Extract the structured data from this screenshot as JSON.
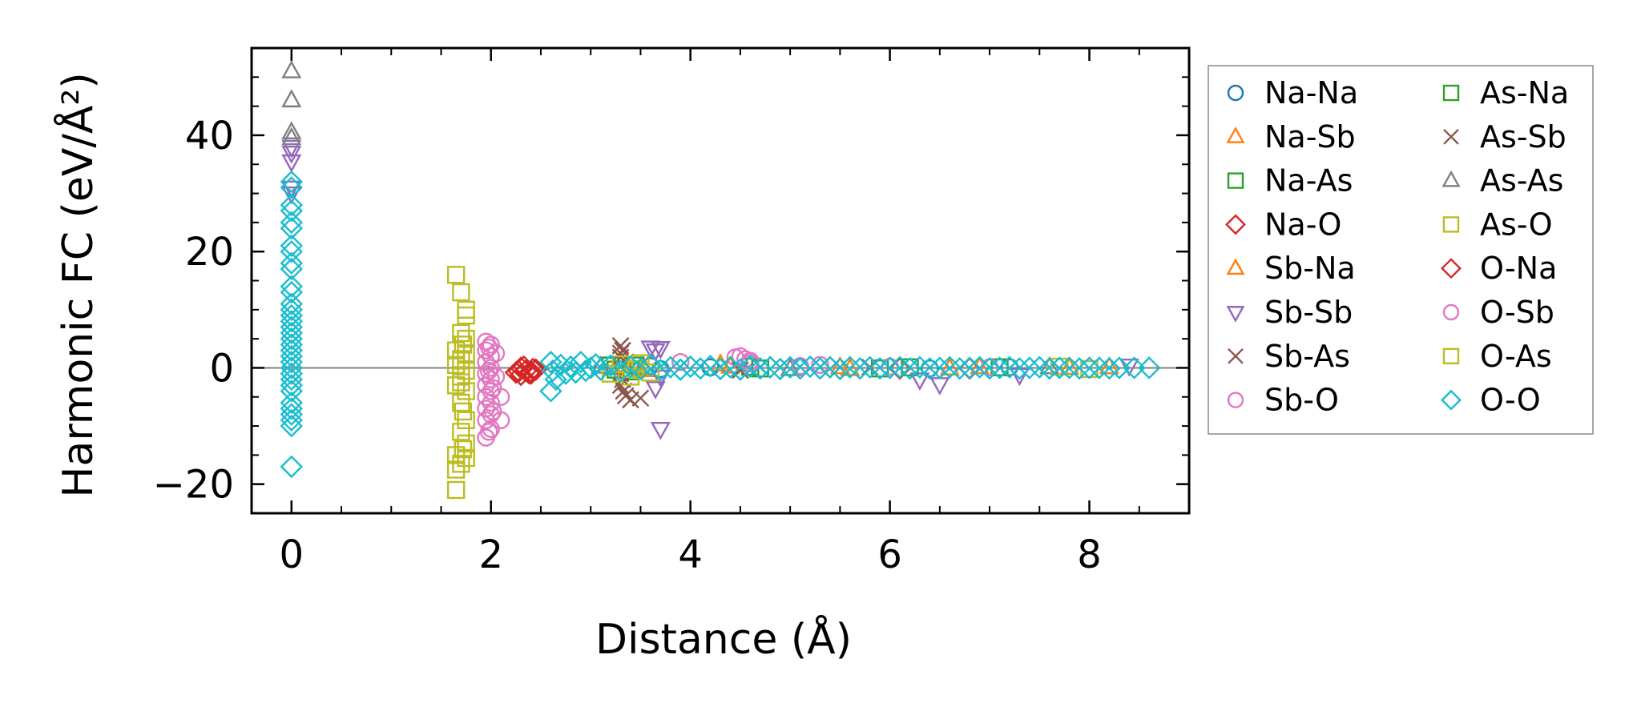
{
  "chart_data": {
    "type": "scatter",
    "title": "",
    "xlabel": "Distance (Å)",
    "ylabel": "Harmonic FC (eV/Å²)",
    "xlim": [
      -0.4,
      9.0
    ],
    "ylim": [
      -25.0,
      55.0
    ],
    "xticks": [
      0,
      2,
      4,
      6,
      8
    ],
    "xtick_labels": [
      "0",
      "2",
      "4",
      "6",
      "8"
    ],
    "yticks": [
      -20,
      0,
      20,
      40
    ],
    "ytick_labels": [
      "−20",
      "0",
      "20",
      "40"
    ],
    "hline": 0,
    "legend_position": "outside-right",
    "series": [
      {
        "name": "Na-Na",
        "color": "#1f77b4",
        "marker": "circle",
        "points": [
          [
            3.6,
            0.3
          ],
          [
            3.7,
            -0.2
          ],
          [
            4.2,
            0.1
          ],
          [
            5.1,
            0.2
          ],
          [
            6.4,
            -0.1
          ],
          [
            7.2,
            0.1
          ]
        ]
      },
      {
        "name": "Na-Sb",
        "color": "#ff7f0e",
        "marker": "triangle-up",
        "points": [
          [
            3.3,
            0.5
          ],
          [
            3.5,
            -0.3
          ],
          [
            4.4,
            0.2
          ],
          [
            5.6,
            -0.2
          ],
          [
            6.9,
            0.1
          ],
          [
            7.8,
            0.0
          ]
        ]
      },
      {
        "name": "Na-As",
        "color": "#2ca02c",
        "marker": "square",
        "points": [
          [
            3.2,
            0.4
          ],
          [
            3.4,
            -0.6
          ],
          [
            4.6,
            0.2
          ],
          [
            5.9,
            -0.1
          ],
          [
            7.1,
            0.1
          ]
        ]
      },
      {
        "name": "Na-O",
        "color": "#d62728",
        "marker": "diamond",
        "points": [
          [
            2.25,
            -0.8
          ],
          [
            2.3,
            -1.2
          ],
          [
            2.35,
            -0.5
          ],
          [
            2.4,
            -1.0
          ],
          [
            2.45,
            -0.3
          ],
          [
            2.3,
            0.0
          ],
          [
            2.4,
            -0.6
          ],
          [
            4.8,
            0.1
          ],
          [
            6.1,
            -0.1
          ]
        ]
      },
      {
        "name": "Sb-Na",
        "color": "#ff7f0e",
        "marker": "triangle-up",
        "points": [
          [
            3.35,
            0.3
          ],
          [
            3.55,
            -0.4
          ],
          [
            4.3,
            0.6
          ],
          [
            5.5,
            0.1
          ],
          [
            6.6,
            -0.1
          ],
          [
            8.2,
            0.1
          ]
        ]
      },
      {
        "name": "Sb-Sb",
        "color": "#9467bd",
        "marker": "triangle-down",
        "points": [
          [
            0,
            38
          ],
          [
            0,
            37
          ],
          [
            0,
            35.5
          ],
          [
            0,
            31
          ],
          [
            0,
            30
          ],
          [
            3.6,
            3.5
          ],
          [
            3.7,
            3.4
          ],
          [
            3.65,
            3.0
          ],
          [
            3.7,
            -1.5
          ],
          [
            3.65,
            -3.5
          ],
          [
            3.7,
            -10.5
          ],
          [
            6.3,
            -2.0
          ],
          [
            6.5,
            -2.8
          ],
          [
            7.3,
            -1.2
          ],
          [
            8.4,
            0.4
          ]
        ]
      },
      {
        "name": "Sb-As",
        "color": "#8c564b",
        "marker": "x",
        "points": [
          [
            3.3,
            3.8
          ],
          [
            3.3,
            2.5
          ],
          [
            3.35,
            1.0
          ],
          [
            3.3,
            -1.0
          ],
          [
            3.3,
            -3.0
          ],
          [
            3.35,
            -4.8
          ],
          [
            3.4,
            -5.5
          ],
          [
            3.5,
            -5.2
          ]
        ]
      },
      {
        "name": "Sb-O",
        "color": "#e377c2",
        "marker": "circle",
        "points": [
          [
            1.95,
            4.5
          ],
          [
            2.0,
            4.0
          ],
          [
            1.95,
            3.0
          ],
          [
            2.0,
            2.0
          ],
          [
            1.95,
            1.0
          ],
          [
            2.0,
            0.0
          ],
          [
            1.95,
            -1.0
          ],
          [
            2.0,
            -2.0
          ],
          [
            1.95,
            -3.0
          ],
          [
            2.0,
            -4.0
          ],
          [
            1.95,
            -5.0
          ],
          [
            2.0,
            -6.0
          ],
          [
            1.95,
            -7.0
          ],
          [
            2.0,
            -8.0
          ],
          [
            1.95,
            -9.0
          ],
          [
            2.0,
            -10.5
          ],
          [
            1.95,
            -12.0
          ],
          [
            2.05,
            2.5
          ],
          [
            2.05,
            -1.5
          ],
          [
            2.1,
            -5.0
          ],
          [
            2.1,
            -9.0
          ],
          [
            3.9,
            1.0
          ],
          [
            4.5,
            2.0
          ],
          [
            4.55,
            1.5
          ],
          [
            4.6,
            1.2
          ],
          [
            5.3,
            0.5
          ],
          [
            6.0,
            0.2
          ],
          [
            7.0,
            0.1
          ]
        ]
      },
      {
        "name": "As-Na",
        "color": "#2ca02c",
        "marker": "square",
        "points": [
          [
            3.25,
            -0.3
          ],
          [
            3.45,
            0.4
          ],
          [
            4.7,
            -0.1
          ],
          [
            6.2,
            0.1
          ]
        ]
      },
      {
        "name": "As-Sb",
        "color": "#8c564b",
        "marker": "x",
        "points": [
          [
            3.32,
            3.0
          ],
          [
            3.3,
            1.8
          ],
          [
            3.32,
            -2.0
          ],
          [
            3.33,
            -4.0
          ],
          [
            4.5,
            -0.4
          ],
          [
            5.8,
            0.1
          ]
        ]
      },
      {
        "name": "As-As",
        "color": "#7f7f7f",
        "marker": "triangle-up",
        "points": [
          [
            0,
            51
          ],
          [
            0,
            46
          ],
          [
            0,
            40.5
          ],
          [
            0,
            39.5
          ],
          [
            3.1,
            0.2
          ],
          [
            5.0,
            -0.2
          ],
          [
            7.6,
            0.1
          ]
        ]
      },
      {
        "name": "As-O",
        "color": "#bcbd22",
        "marker": "square",
        "points": [
          [
            1.65,
            16
          ],
          [
            1.75,
            10
          ],
          [
            1.75,
            9
          ],
          [
            1.7,
            6
          ],
          [
            1.75,
            5
          ],
          [
            1.65,
            3
          ],
          [
            1.75,
            2.5
          ],
          [
            1.7,
            1.5
          ],
          [
            1.65,
            0.5
          ],
          [
            1.75,
            -0.5
          ],
          [
            1.7,
            -1.5
          ],
          [
            1.65,
            -3.0
          ],
          [
            1.75,
            -4.0
          ],
          [
            1.7,
            -6.0
          ],
          [
            1.75,
            -9.0
          ],
          [
            1.7,
            -11.0
          ],
          [
            1.75,
            -13.0
          ],
          [
            1.65,
            -15.0
          ],
          [
            1.7,
            -16.5
          ],
          [
            1.75,
            -15.5
          ],
          [
            1.65,
            -17.5
          ],
          [
            1.65,
            -21.0
          ],
          [
            3.2,
            -1.0
          ],
          [
            3.4,
            -1.5
          ],
          [
            3.5,
            0.8
          ],
          [
            3.6,
            -0.8
          ],
          [
            7.7,
            0.2
          ],
          [
            8.0,
            -0.2
          ]
        ]
      },
      {
        "name": "O-Na",
        "color": "#d62728",
        "marker": "diamond",
        "points": [
          [
            2.28,
            -0.6
          ],
          [
            2.38,
            -0.9
          ],
          [
            2.42,
            -0.2
          ],
          [
            2.33,
            0.2
          ],
          [
            5.4,
            0.1
          ],
          [
            6.8,
            -0.1
          ]
        ]
      },
      {
        "name": "O-Sb",
        "color": "#e377c2",
        "marker": "circle",
        "points": [
          [
            1.98,
            3.5
          ],
          [
            1.98,
            -0.5
          ],
          [
            2.02,
            -3.5
          ],
          [
            2.02,
            -7.5
          ],
          [
            1.98,
            -11.0
          ],
          [
            4.45,
            1.8
          ],
          [
            4.6,
            0.8
          ],
          [
            5.1,
            0.3
          ]
        ]
      },
      {
        "name": "O-As",
        "color": "#bcbd22",
        "marker": "square",
        "points": [
          [
            1.7,
            13.0
          ],
          [
            1.72,
            4.0
          ],
          [
            1.7,
            -2.5
          ],
          [
            1.72,
            -7.5
          ],
          [
            1.72,
            -14.0
          ],
          [
            3.3,
            0.6
          ],
          [
            3.45,
            -0.2
          ]
        ]
      },
      {
        "name": "O-O",
        "color": "#17becf",
        "marker": "diamond",
        "points": [
          [
            0,
            32
          ],
          [
            0,
            31
          ],
          [
            0,
            28
          ],
          [
            0,
            27
          ],
          [
            0,
            25
          ],
          [
            0,
            24
          ],
          [
            0,
            21
          ],
          [
            0,
            20
          ],
          [
            0,
            18
          ],
          [
            0,
            17
          ],
          [
            0,
            14
          ],
          [
            0,
            13
          ],
          [
            0,
            11
          ],
          [
            0,
            10
          ],
          [
            0,
            9
          ],
          [
            0,
            8
          ],
          [
            0,
            7
          ],
          [
            0,
            6
          ],
          [
            0,
            5
          ],
          [
            0,
            4
          ],
          [
            0,
            3
          ],
          [
            0,
            2
          ],
          [
            0,
            1
          ],
          [
            0,
            0
          ],
          [
            0,
            -1
          ],
          [
            0,
            -2
          ],
          [
            0,
            -3
          ],
          [
            0,
            -4
          ],
          [
            0,
            -6
          ],
          [
            0,
            -7
          ],
          [
            0,
            -8
          ],
          [
            0,
            -9
          ],
          [
            0,
            -10
          ],
          [
            0,
            -17
          ],
          [
            2.6,
            1.0
          ],
          [
            2.62,
            -0.5
          ],
          [
            2.65,
            -2.0
          ],
          [
            2.6,
            -4.0
          ],
          [
            2.7,
            0.5
          ],
          [
            2.75,
            -1.0
          ],
          [
            2.8,
            0.2
          ],
          [
            2.85,
            -0.8
          ],
          [
            2.9,
            1.0
          ],
          [
            2.95,
            -0.5
          ],
          [
            3.0,
            0.0
          ],
          [
            3.05,
            0.6
          ],
          [
            3.1,
            -0.3
          ],
          [
            3.2,
            0.4
          ],
          [
            3.3,
            -0.6
          ],
          [
            3.4,
            0.2
          ],
          [
            3.5,
            -0.2
          ],
          [
            3.6,
            0.5
          ],
          [
            3.7,
            -0.4
          ],
          [
            3.8,
            0.1
          ],
          [
            3.9,
            -0.3
          ],
          [
            4.0,
            0.2
          ],
          [
            4.1,
            -0.1
          ],
          [
            4.2,
            0.3
          ],
          [
            4.3,
            -0.2
          ],
          [
            4.4,
            0.1
          ],
          [
            4.5,
            -0.3
          ],
          [
            4.6,
            0.2
          ],
          [
            4.7,
            -0.1
          ],
          [
            4.8,
            0.1
          ],
          [
            4.9,
            -0.2
          ],
          [
            5.0,
            0.1
          ],
          [
            5.1,
            -0.1
          ],
          [
            5.2,
            0.2
          ],
          [
            5.3,
            -0.1
          ],
          [
            5.4,
            0.1
          ],
          [
            5.5,
            -0.2
          ],
          [
            5.6,
            0.1
          ],
          [
            5.7,
            -0.1
          ],
          [
            5.8,
            0.1
          ],
          [
            5.9,
            -0.1
          ],
          [
            6.0,
            0.0
          ],
          [
            6.1,
            0.1
          ],
          [
            6.2,
            -0.1
          ],
          [
            6.3,
            0.1
          ],
          [
            6.4,
            -0.1
          ],
          [
            6.5,
            0.0
          ],
          [
            6.6,
            0.1
          ],
          [
            6.7,
            -0.1
          ],
          [
            6.8,
            0.0
          ],
          [
            6.9,
            0.1
          ],
          [
            7.0,
            -0.1
          ],
          [
            7.1,
            0.0
          ],
          [
            7.2,
            0.1
          ],
          [
            7.3,
            -0.1
          ],
          [
            7.4,
            0.0
          ],
          [
            7.5,
            0.1
          ],
          [
            7.6,
            -0.1
          ],
          [
            7.7,
            0.0
          ],
          [
            7.8,
            0.0
          ],
          [
            7.9,
            -0.1
          ],
          [
            8.0,
            0.0
          ],
          [
            8.1,
            0.0
          ],
          [
            8.2,
            -0.1
          ],
          [
            8.3,
            0.0
          ],
          [
            8.45,
            0.0
          ],
          [
            8.6,
            0.0
          ]
        ]
      }
    ]
  }
}
